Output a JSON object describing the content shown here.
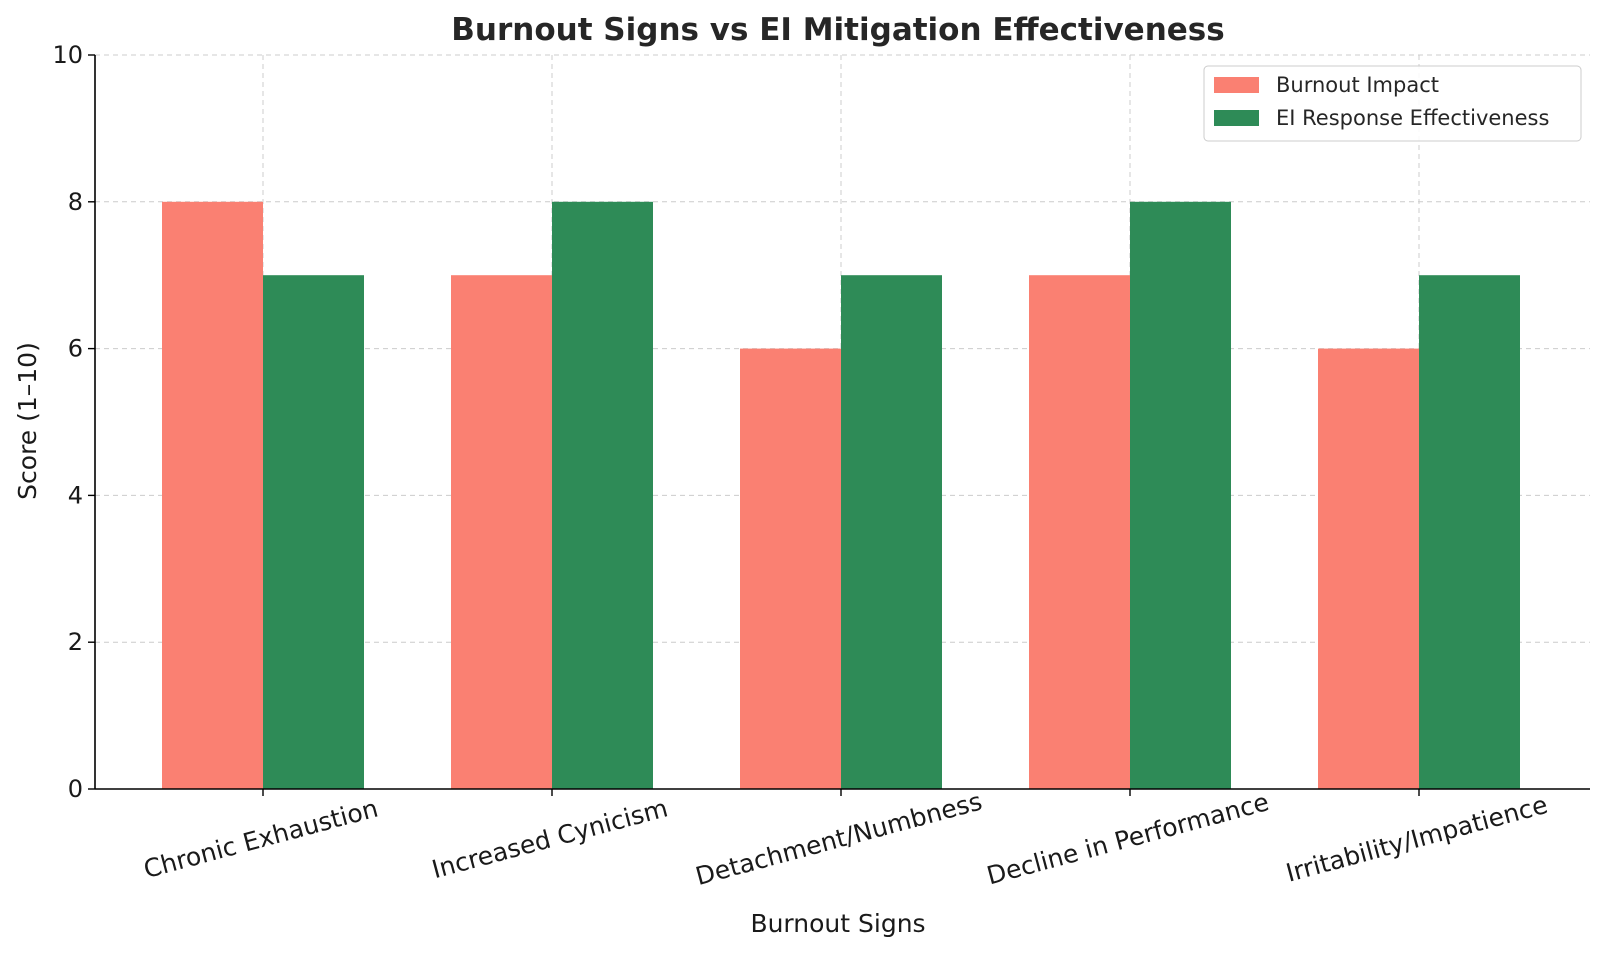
{
  "chart_data": {
    "type": "bar",
    "title": "Burnout Signs vs EI Mitigation Effectiveness",
    "xlabel": "Burnout Signs",
    "ylabel": "Score (1–10)",
    "categories": [
      "Chronic Exhaustion",
      "Increased Cynicism",
      "Detachment/Numbness",
      "Decline in Performance",
      "Irritability/Impatience"
    ],
    "series": [
      {
        "name": "Burnout Impact",
        "color": "#fa8072",
        "values": [
          8,
          7,
          6,
          7,
          6
        ]
      },
      {
        "name": "EI Response Effectiveness",
        "color": "#2e8b57",
        "values": [
          7,
          8,
          7,
          8,
          7
        ]
      }
    ],
    "ylim": [
      0,
      10
    ],
    "yticks": [
      0,
      2,
      4,
      6,
      8,
      10
    ],
    "grid": true,
    "legend_position": "top-right"
  }
}
